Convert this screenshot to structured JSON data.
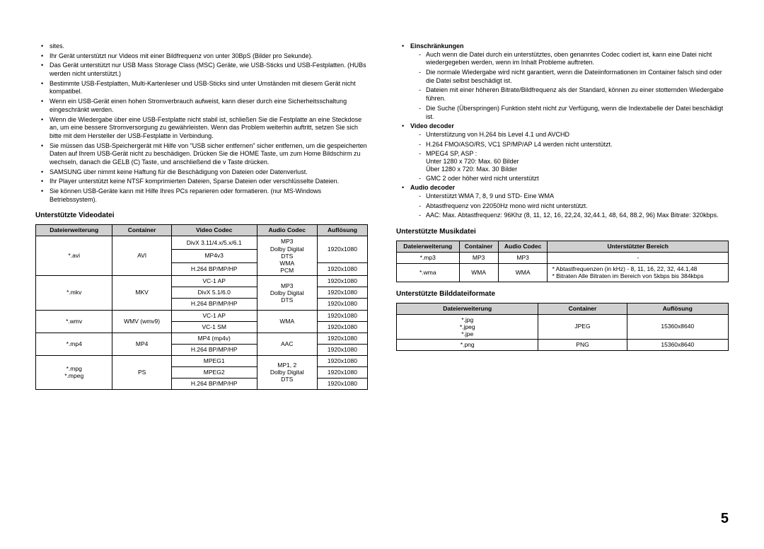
{
  "pageNumber": "5",
  "leftColumn": {
    "bullets": [
      "sites.",
      "Ihr Gerät unterstützt nur Videos mit einer Bildfrequenz von unter 30BpS (Bilder pro Sekunde).",
      "Das Gerät unterstützt nur USB Mass Storage Class (MSC) Geräte, wie USB-Sticks und USB-Festplatten. (HUBs werden nicht unterstützt.)",
      "Bestimmte USB-Festplatten, Multi-Kartenleser und USB-Sticks sind unter Umständen mit diesem Gerät nicht kompatibel.",
      "Wenn ein USB-Gerät einen hohen Stromverbrauch aufweist, kann dieser durch eine Sicherheitsschaltung eingeschränkt werden.",
      "Wenn die Wiedergabe über eine USB-Festplatte nicht stabil ist, schließen Sie die Festplatte an eine Steckdose an, um eine bessere Stromversorgung zu gewährleisten. Wenn das Problem weiterhin auftritt, setzen Sie sich bitte mit dem Hersteller der USB-Festplatte in Verbindung.",
      "Sie müssen das USB-Speichergerät mit Hilfe von \"USB sicher entfernen\" sicher entfernen, um die gespeicherten Daten auf Ihrem USB-Gerät nicht zu beschädigen. Drücken Sie die HOME Taste, um zum Home Bildschirm zu wechseln, danach die GELB (C) Taste, und anschließend die v Taste drücken.",
      "SAMSUNG über nimmt keine Haftung für die Beschädigung von Dateien oder Datenverlust.",
      "Ihr Player unterstützt keine NTSF komprimierten Dateien, Sparse Dateien oder verschlüsselte Dateien.",
      "Sie können USB-Geräte kann mit Hilfe Ihres PCs reparieren oder formatieren. (nur MS-Windows Betriebssystem)."
    ],
    "videoTitle": "Unterstützte Videodatei",
    "videoHeaders": [
      "Dateierweiterung",
      "Container",
      "Video Codec",
      "Audio Codec",
      "Auflösung"
    ],
    "videoRows": {
      "r1": {
        "ext": "*.avi",
        "container": "AVI",
        "codec1": "DivX 3.11/4.x/5.x/6.1",
        "codec2": "MP4v3",
        "codec3": "H.264 BP/MP/HP",
        "audio": "MP3\nDolby Digital\nDTS\nWMA\nPCM",
        "res1": "1920x1080",
        "res2": "1920x1080"
      },
      "r2": {
        "ext": "*.mkv",
        "container": "MKV",
        "codec1": "VC-1 AP",
        "codec2": "DivX 5.1/6.0",
        "codec3": "H.264 BP/MP/HP",
        "audio": "MP3\nDolby Digital\nDTS",
        "res1": "1920x1080",
        "res2": "1920x1080",
        "res3": "1920x1080"
      },
      "r3": {
        "ext": "*.wmv",
        "container": "WMV (wmv9)",
        "codec1": "VC-1 AP",
        "codec2": "VC-1 SM",
        "audio": "WMA",
        "res1": "1920x1080",
        "res2": "1920x1080"
      },
      "r4": {
        "ext": "*.mp4",
        "container": "MP4",
        "codec1": "MP4 (mp4v)",
        "codec2": "H.264 BP/MP/HP",
        "audio": "AAC",
        "res1": "1920x1080",
        "res2": "1920x1080"
      },
      "r5": {
        "ext": "*.mpg\n*.mpeg",
        "container": "PS",
        "codec1": "MPEG1",
        "codec2": "MPEG2",
        "codec3": "H.264 BP/MP/HP",
        "audio": "MP1, 2\nDolby Digital\nDTS",
        "res1": "1920x1080",
        "res2": "1920x1080",
        "res3": "1920x1080"
      }
    }
  },
  "rightColumn": {
    "limitTitle": "Einschränkungen",
    "limitItems": [
      "Auch wenn die Datei durch ein unterstütztes, oben genanntes Codec codiert ist, kann eine Datei nicht wiedergegeben werden, wenn im Inhalt Probleme auftreten.",
      "Die normale Wiedergabe wird nicht garantiert, wenn die Dateiinformationen im Container falsch sind oder die Datei selbst beschädigt ist.",
      "Dateien mit einer höheren Bitrate/Bildfrequenz als der Standard, können zu einer stotternden Wiedergabe führen.",
      "Die Suche (Überspringen) Funktion steht nicht zur Verfügung, wenn die Indextabelle der Datei beschädigt ist."
    ],
    "vdecTitle": "Video decoder",
    "vdecItems": [
      "Unterstützung von H.264 bis Level 4.1 und AVCHD",
      "H.264 FMO/ASO/RS, VC1 SP/MP/AP L4 werden nicht unterstützt.",
      "MPEG4 SP, ASP :\nUnter 1280 x 720: Max. 60 Bilder\nÜber 1280 x 720: Max. 30 Bilder",
      "GMC 2 oder höher wird nicht unterstützt"
    ],
    "adecTitle": "Audio decoder",
    "adecItems": [
      "Unterstützt WMA 7, 8, 9 und STD- Eine WMA",
      "Abtastfrequenz von 22050Hz mono wird nicht unterstützt.",
      "AAC: Max. Abtastfrequenz: 96Khz (8, 11, 12, 16, 22,24, 32,44.1, 48, 64, 88.2, 96) Max Bitrate: 320kbps."
    ],
    "musicTitle": "Unterstützte Musikdatei",
    "musicHeaders": [
      "Dateierweiterung",
      "Container",
      "Audio Codec",
      "Unterstützter Bereich"
    ],
    "musicRows": [
      {
        "ext": "*.mp3",
        "container": "MP3",
        "codec": "MP3",
        "range": "-"
      },
      {
        "ext": "*.wma",
        "container": "WMA",
        "codec": "WMA",
        "range": "* Abtastfrequenzen (in kHz) - 8, 11, 16, 22, 32, 44.1,48\n* Bitraten Alle Bitraten im Bereich von 5kbps bis 384kbps"
      }
    ],
    "imageTitle": "Unterstützte Bilddateiformate",
    "imageHeaders": [
      "Dateierweiterung",
      "Container",
      "Auflösung"
    ],
    "imageRows": [
      {
        "ext": "*.jpg\n*.jpeg\n*.jpe",
        "container": "JPEG",
        "res": "15360x8640"
      },
      {
        "ext": "*.png",
        "container": "PNG",
        "res": "15360x8640"
      }
    ]
  }
}
